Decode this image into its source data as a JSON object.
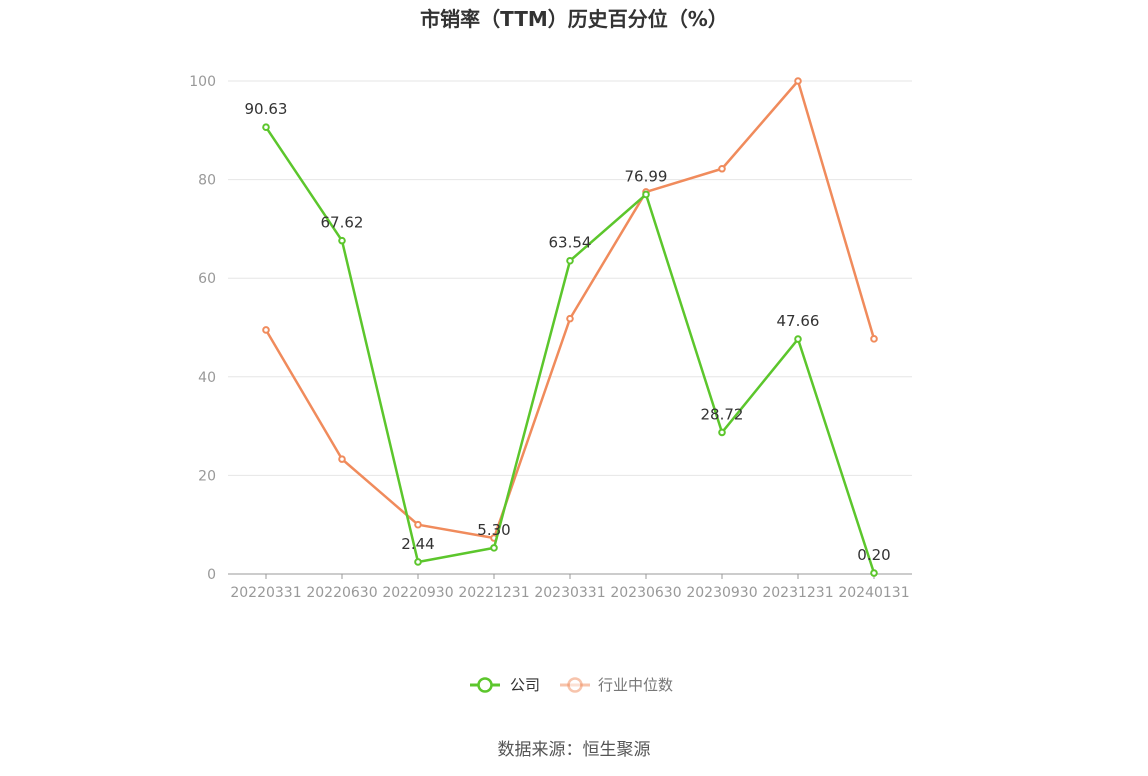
{
  "chart_data": {
    "type": "line",
    "title": "市销率（TTM）历史百分位（%）",
    "categories": [
      "20220331",
      "20220630",
      "20220930",
      "20221231",
      "20230331",
      "20230630",
      "20230930",
      "20231231",
      "20240131"
    ],
    "ylim": [
      0,
      100
    ],
    "yticks": [
      0,
      20,
      40,
      60,
      80,
      100
    ],
    "grid": true,
    "legend_position": "bottom",
    "series": [
      {
        "name": "公司",
        "color": "#5cc62c",
        "values": [
          90.63,
          67.62,
          2.44,
          5.3,
          63.54,
          76.99,
          28.72,
          47.66,
          0.2
        ],
        "labels": [
          "90.63",
          "67.62",
          "2.44",
          "5.30",
          "63.54",
          "76.99",
          "28.72",
          "47.66",
          "0.20"
        ]
      },
      {
        "name": "行业中位数",
        "color": "#f08b5c",
        "values": [
          49.5,
          23.3,
          10.0,
          7.3,
          51.8,
          77.5,
          82.2,
          100,
          47.7
        ]
      }
    ]
  },
  "source_text": "数据来源：恒生聚源"
}
